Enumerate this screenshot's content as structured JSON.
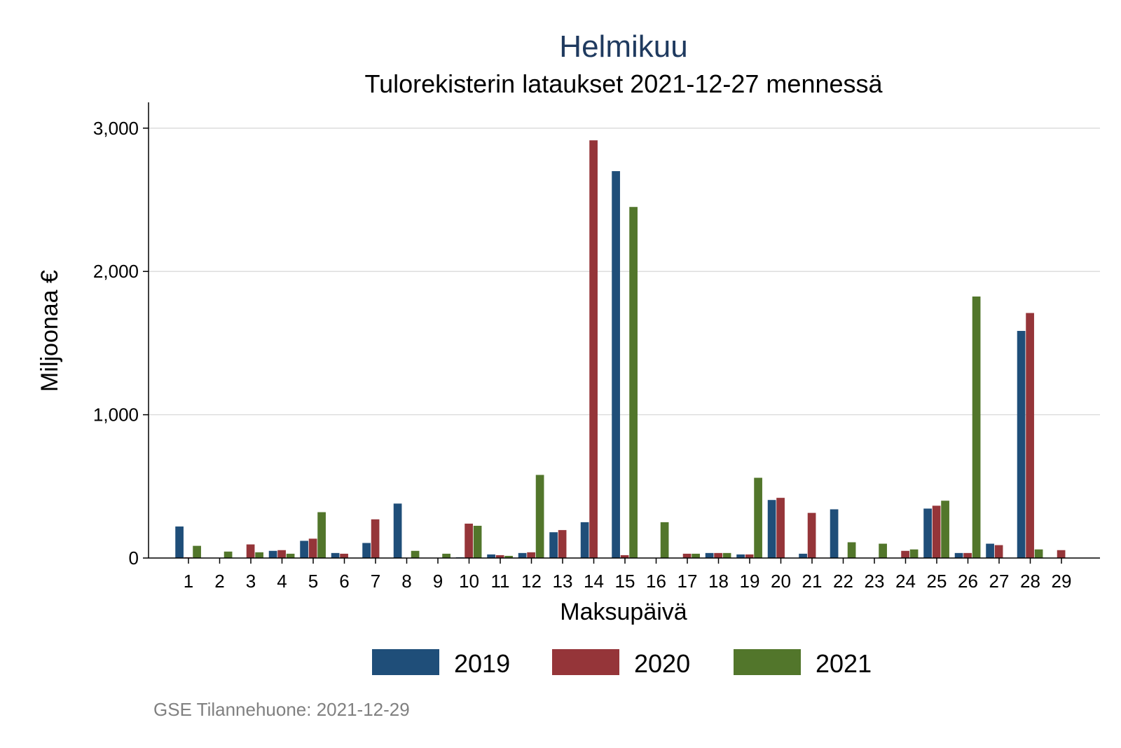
{
  "chart_data": {
    "type": "bar",
    "title": "Helmikuu",
    "subtitle": "Tulorekisterin lataukset 2021-12-27 mennessä",
    "xlabel": "Maksupäivä",
    "ylabel": "Miljoonaa €",
    "ylim": [
      0,
      3180
    ],
    "yticks": [
      0,
      1000,
      2000,
      3000
    ],
    "ytick_labels": [
      "0",
      "1,000",
      "2,000",
      "3,000"
    ],
    "grid": true,
    "legend_position": "bottom",
    "categories": [
      "1",
      "2",
      "3",
      "4",
      "5",
      "6",
      "7",
      "8",
      "9",
      "10",
      "11",
      "12",
      "13",
      "14",
      "15",
      "16",
      "17",
      "18",
      "19",
      "20",
      "21",
      "22",
      "23",
      "24",
      "25",
      "26",
      "27",
      "28",
      "29"
    ],
    "series": [
      {
        "name": "2019",
        "color": "#1f4e79",
        "values": [
          220,
          0,
          0,
          50,
          120,
          35,
          105,
          380,
          0,
          5,
          25,
          35,
          180,
          250,
          2700,
          0,
          0,
          35,
          25,
          405,
          30,
          340,
          0,
          0,
          345,
          35,
          100,
          1585,
          0
        ]
      },
      {
        "name": "2020",
        "color": "#953539",
        "values": [
          5,
          0,
          95,
          55,
          135,
          30,
          270,
          0,
          0,
          240,
          20,
          40,
          195,
          2915,
          20,
          0,
          30,
          35,
          25,
          420,
          315,
          0,
          0,
          50,
          365,
          35,
          90,
          1710,
          55
        ]
      },
      {
        "name": "2021",
        "color": "#52762b",
        "values": [
          85,
          45,
          40,
          30,
          320,
          0,
          0,
          50,
          30,
          225,
          15,
          580,
          0,
          0,
          2450,
          250,
          30,
          35,
          560,
          0,
          0,
          110,
          100,
          60,
          400,
          1825,
          0,
          60,
          0
        ]
      }
    ],
    "note": "GSE Tilannehuone: 2021-12-29"
  }
}
